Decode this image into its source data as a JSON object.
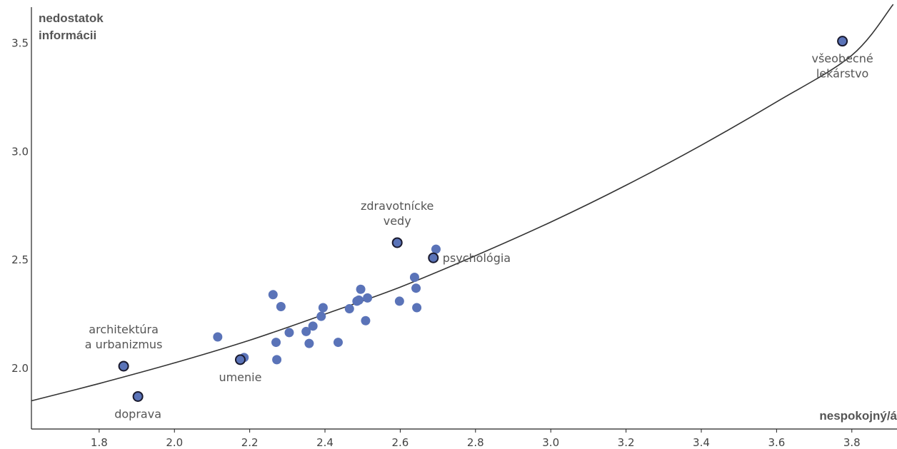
{
  "chart_data": {
    "type": "scatter",
    "title": "",
    "xlabel": "nespokojný/á",
    "ylabel_lines": [
      "nedostatok",
      "informácii"
    ],
    "xlim": [
      1.62,
      3.92
    ],
    "ylim": [
      1.72,
      3.7
    ],
    "x_ticks": [
      "1.8",
      "2.0",
      "2.2",
      "2.4",
      "2.6",
      "2.8",
      "3.0",
      "3.2",
      "3.4",
      "3.6",
      "3.8"
    ],
    "y_ticks": [
      "2.0",
      "2.5",
      "3.0",
      "3.5"
    ],
    "grid": false,
    "colors": {
      "point": "#5a73b8",
      "point_outline": "#1a1a2e",
      "curve": "#333333",
      "text": "#555555"
    },
    "points": [
      {
        "x": 2.115,
        "y": 2.145
      },
      {
        "x": 2.185,
        "y": 2.05
      },
      {
        "x": 2.262,
        "y": 2.34
      },
      {
        "x": 2.27,
        "y": 2.12
      },
      {
        "x": 2.272,
        "y": 2.04
      },
      {
        "x": 2.283,
        "y": 2.285
      },
      {
        "x": 2.305,
        "y": 2.165
      },
      {
        "x": 2.35,
        "y": 2.17
      },
      {
        "x": 2.358,
        "y": 2.115
      },
      {
        "x": 2.368,
        "y": 2.195
      },
      {
        "x": 2.39,
        "y": 2.24
      },
      {
        "x": 2.395,
        "y": 2.28
      },
      {
        "x": 2.435,
        "y": 2.12
      },
      {
        "x": 2.465,
        "y": 2.275
      },
      {
        "x": 2.485,
        "y": 2.31
      },
      {
        "x": 2.49,
        "y": 2.315
      },
      {
        "x": 2.495,
        "y": 2.365
      },
      {
        "x": 2.508,
        "y": 2.22
      },
      {
        "x": 2.513,
        "y": 2.325
      },
      {
        "x": 2.598,
        "y": 2.31
      },
      {
        "x": 2.638,
        "y": 2.42
      },
      {
        "x": 2.642,
        "y": 2.37
      },
      {
        "x": 2.644,
        "y": 2.28
      },
      {
        "x": 2.695,
        "y": 2.55
      }
    ],
    "highlighted": [
      {
        "x": 1.865,
        "y": 2.01,
        "label": [
          "architektúra",
          "a urbanizmus"
        ],
        "label_pos": "above"
      },
      {
        "x": 1.903,
        "y": 1.87,
        "label": [
          "doprava"
        ],
        "label_pos": "below"
      },
      {
        "x": 2.175,
        "y": 2.04,
        "label": [
          "umenie"
        ],
        "label_pos": "below"
      },
      {
        "x": 2.592,
        "y": 2.58,
        "label": [
          "zdravotnícke",
          "vedy"
        ],
        "label_pos": "above"
      },
      {
        "x": 2.688,
        "y": 2.51,
        "label": [
          "psychológia"
        ],
        "label_pos": "right"
      },
      {
        "x": 3.775,
        "y": 3.51,
        "label": [
          "všeobecné",
          "lekárstvo"
        ],
        "label_pos": "below"
      }
    ],
    "trend_curve": [
      [
        1.62,
        1.85
      ],
      [
        1.8,
        1.93
      ],
      [
        2.0,
        2.025
      ],
      [
        2.2,
        2.13
      ],
      [
        2.4,
        2.25
      ],
      [
        2.6,
        2.375
      ],
      [
        2.8,
        2.52
      ],
      [
        3.0,
        2.675
      ],
      [
        3.2,
        2.845
      ],
      [
        3.4,
        3.03
      ],
      [
        3.6,
        3.23
      ],
      [
        3.8,
        3.445
      ],
      [
        3.91,
        3.68
      ]
    ]
  }
}
